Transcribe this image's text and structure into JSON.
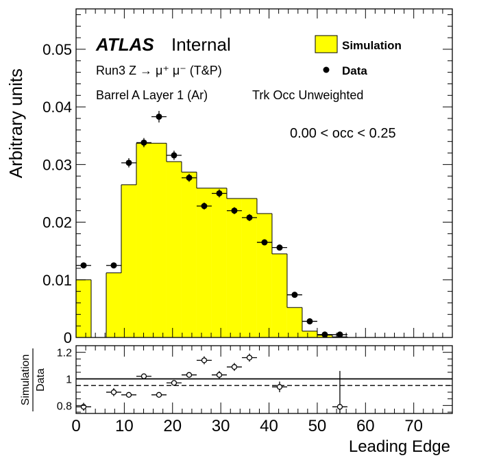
{
  "chart_data": [
    {
      "type": "bar",
      "panel": "main",
      "ylabel": "Arbitrary units",
      "ylim": [
        0,
        0.057
      ],
      "xlim": [
        0,
        78
      ],
      "y_ticks": [
        "0",
        "0.01",
        "0.02",
        "0.03",
        "0.04",
        "0.05"
      ],
      "y_tick_values": [
        0,
        0.01,
        0.02,
        0.03,
        0.04,
        0.05
      ],
      "atlas_label": "ATLAS",
      "internal_label": "Internal",
      "process_label": "Run3 Z → μ⁺ μ⁻ (T&P)",
      "region_label": "Barrel A Layer 1 (Ar)",
      "weight_label": "Trk Occ Unweighted",
      "occ_label": "0.00 < occ < 0.25",
      "legend": {
        "position": "top-right",
        "simulation": "Simulation",
        "data": "Data"
      },
      "colors": {
        "simulation_fill": "#ffff00",
        "outline": "#000000"
      },
      "simulation_histogram": {
        "bin_edges": [
          0,
          3.125,
          6.25,
          9.375,
          12.5,
          15.625,
          18.75,
          21.875,
          25,
          28.125,
          31.25,
          34.375,
          37.5,
          40.625,
          43.75,
          46.875,
          50,
          53.125,
          56.25,
          59.375,
          62.5,
          65.625,
          68.75,
          71.875,
          75,
          78.125
        ],
        "values": [
          0.01,
          0.0,
          0.0112,
          0.0265,
          0.0337,
          0.0337,
          0.0305,
          0.0287,
          0.0259,
          0.0259,
          0.0241,
          0.0241,
          0.0215,
          0.0145,
          0.0052,
          0.0011,
          0.0004,
          0.0001,
          0,
          0,
          0,
          0,
          0,
          0,
          0
        ]
      },
      "data_points": {
        "x": [
          1.56,
          7.81,
          10.94,
          14.06,
          17.19,
          20.31,
          23.44,
          26.56,
          29.69,
          32.81,
          35.94,
          39.06,
          42.19,
          45.31,
          48.44,
          51.56,
          54.69
        ],
        "y": [
          0.0125,
          0.0125,
          0.0303,
          0.0338,
          0.0383,
          0.0316,
          0.0277,
          0.0228,
          0.025,
          0.022,
          0.0208,
          0.0165,
          0.0156,
          0.0074,
          0.0028,
          0.0005,
          0.0005
        ],
        "yerr": [
          0.0005,
          0.0005,
          0.0008,
          0.0008,
          0.001,
          0.0008,
          0.0007,
          0.0006,
          0.0007,
          0.0006,
          0.0006,
          0.0005,
          0.0005,
          0.0003,
          0.0002,
          0.0001,
          0.0001
        ]
      }
    },
    {
      "type": "scatter",
      "panel": "ratio",
      "ylabel": "Simulation\nData",
      "ylim": [
        0.74,
        1.25
      ],
      "y_ticks": [
        "0.8",
        "1",
        "1.2"
      ],
      "y_tick_values": [
        0.8,
        1.0,
        1.2
      ],
      "reference_lines": [
        1.0,
        0.95
      ],
      "x": [
        1.56,
        7.81,
        10.94,
        14.06,
        17.19,
        20.31,
        23.44,
        26.56,
        29.69,
        32.81,
        35.94,
        42.19,
        54.69
      ],
      "y": [
        0.79,
        0.9,
        0.88,
        1.02,
        0.88,
        0.97,
        1.03,
        1.14,
        1.03,
        1.09,
        1.16,
        0.94,
        0.79
      ],
      "yerr": [
        0.03,
        0.03,
        0.02,
        0.02,
        0.02,
        0.02,
        0.02,
        0.03,
        0.03,
        0.03,
        0.03,
        0.04,
        0.27
      ],
      "xlabel": "Leading Edge",
      "x_ticks": [
        "0",
        "10",
        "20",
        "30",
        "40",
        "50",
        "60",
        "70"
      ],
      "x_tick_values": [
        0,
        10,
        20,
        30,
        40,
        50,
        60,
        70
      ]
    }
  ]
}
